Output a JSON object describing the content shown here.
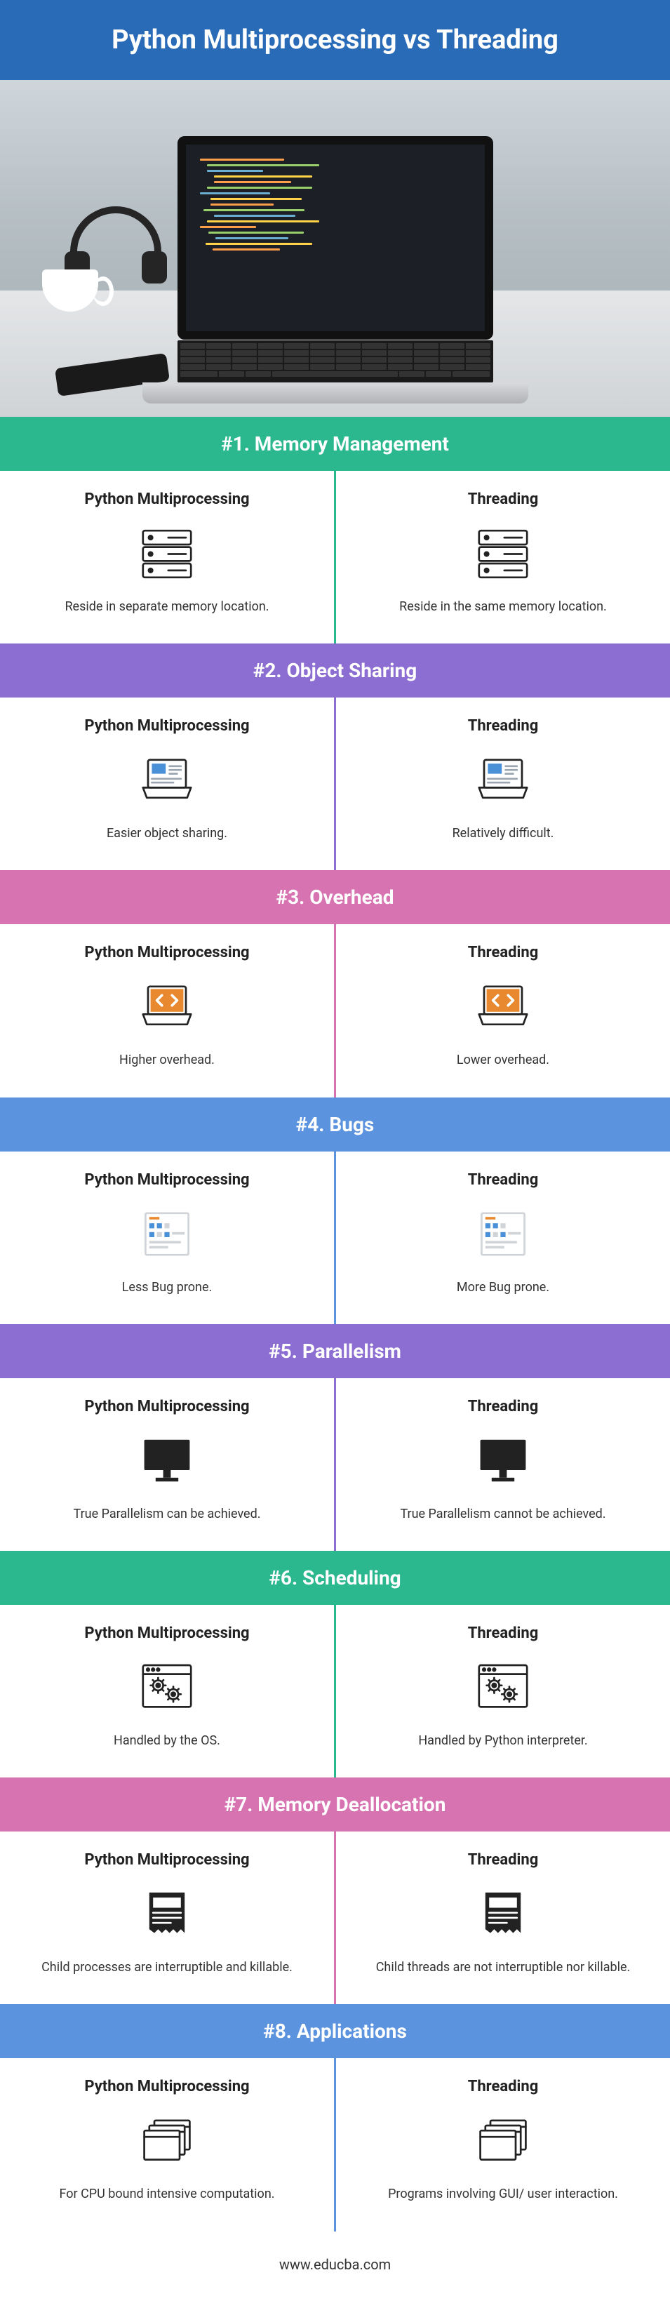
{
  "title": "Python Multiprocessing vs Threading",
  "footer": "www.educba.com",
  "colors": {
    "header": "#2a6bb8",
    "section": [
      "#2bb88f",
      "#8c6dd1",
      "#d773b0",
      "#5c93de",
      "#8c6dd1",
      "#2bb88f",
      "#d773b0",
      "#5c93de"
    ],
    "divider": [
      "#2bb88f",
      "#8c6dd1",
      "#d773b0",
      "#5c93de",
      "#8c6dd1",
      "#2bb88f",
      "#d773b0",
      "#5c93de"
    ]
  },
  "left_label": "Python Multiprocessing",
  "right_label": "Threading",
  "sections": [
    {
      "num": "#1.",
      "title": "Memory Management",
      "left_text": "Reside in separate memory location.",
      "right_text": "Reside in the same memory location.",
      "icon": "server"
    },
    {
      "num": "#2.",
      "title": "Object Sharing",
      "left_text": "Easier object sharing.",
      "right_text": "Relatively difficult.",
      "icon": "laptop-blue"
    },
    {
      "num": "#3.",
      "title": "Overhead",
      "left_text": "Higher overhead.",
      "right_text": "Lower overhead.",
      "icon": "laptop-orange"
    },
    {
      "num": "#4.",
      "title": "Bugs",
      "left_text": "Less Bug prone.",
      "right_text": "More Bug prone.",
      "icon": "form"
    },
    {
      "num": "#5.",
      "title": "Parallelism",
      "left_text": "True Parallelism can be achieved.",
      "right_text": "True Parallelism cannot be achieved.",
      "icon": "monitor"
    },
    {
      "num": "#6.",
      "title": "Scheduling",
      "left_text": "Handled by the OS.",
      "right_text": "Handled by Python interpreter.",
      "icon": "window-gears"
    },
    {
      "num": "#7.",
      "title": "Memory Deallocation",
      "left_text": "Child processes are interruptible and killable.",
      "right_text": "Child threads are not interruptible nor killable.",
      "icon": "receipt"
    },
    {
      "num": "#8.",
      "title": "Applications",
      "left_text": "For CPU bound intensive computation.",
      "right_text": "Programs involving GUI/ user interaction.",
      "icon": "windows-stack"
    }
  ]
}
